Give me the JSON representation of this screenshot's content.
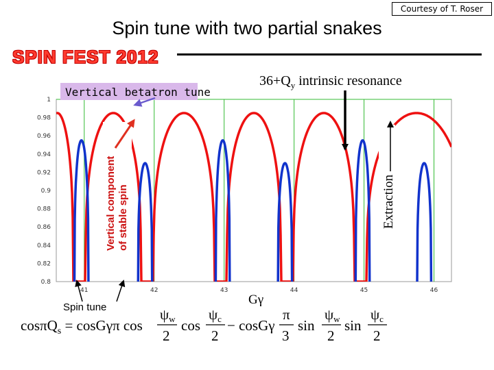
{
  "header": {
    "credit": "Courtesy of T. Roser",
    "title": "Spin tune with two partial snakes",
    "brand": "SPIN FEST 2012"
  },
  "annotations": {
    "vertical_betatron_tune": "Vertical betatron tune",
    "intrinsic_resonance_prefix": "36+Q",
    "intrinsic_resonance_sub": "y",
    "intrinsic_resonance_suffix": " intrinsic resonance",
    "extraction": "Extraction",
    "spin_tune": "Spin tune",
    "ggamma": "Gγ"
  },
  "formula": {
    "lhs": "cosπQ",
    "lhs_sub": "s",
    "eq": " = cosGγπ cos",
    "psi_w": "ψ",
    "sub_w": "w",
    "psi_c": "ψ",
    "sub_c": "c",
    "minus": "− cosGγ",
    "pi": "π",
    "sin": "sin",
    "cos": "cos",
    "two": "2",
    "three": "3"
  },
  "colors": {
    "red_series": "#ee1111",
    "blue_series": "#1133cc",
    "grid": "#33bb33",
    "brand": "#ff3b2f"
  },
  "chart_data": {
    "type": "line",
    "title": "",
    "xlabel": "Gγ",
    "ylabel": "Vertical component of stable spin",
    "xlim": [
      40.6,
      46.25
    ],
    "ylim": [
      0.8,
      1.0
    ],
    "x_ticks": [
      41,
      42,
      43,
      44,
      45,
      46
    ],
    "y_ticks": [
      0.8,
      0.82,
      0.84,
      0.86,
      0.88,
      0.9,
      0.92,
      0.94,
      0.96,
      0.98,
      1
    ],
    "y_tick_labels": [
      "0.8",
      "0.82",
      "0.84",
      "0.86",
      "0.88",
      "0.9",
      "0.92",
      "0.94",
      "0.96",
      "0.98",
      "1"
    ],
    "series": [
      {
        "name": "stable spin (red)",
        "color": "#ee1111",
        "dips": [
          40.93,
          41.9,
          42.95,
          43.9,
          44.95
        ],
        "dip_half_width": 0.09,
        "dip_min": 0.8,
        "lobe_peak": 0.985
      },
      {
        "name": "betatron resonance (blue)",
        "color": "#1133cc",
        "peaks": [
          40.96,
          41.87,
          42.98,
          43.87,
          44.98,
          45.86
        ],
        "peak_heights": [
          0.955,
          0.93,
          0.955,
          0.93,
          0.955,
          0.93
        ],
        "peak_half_width": 0.1
      }
    ]
  }
}
